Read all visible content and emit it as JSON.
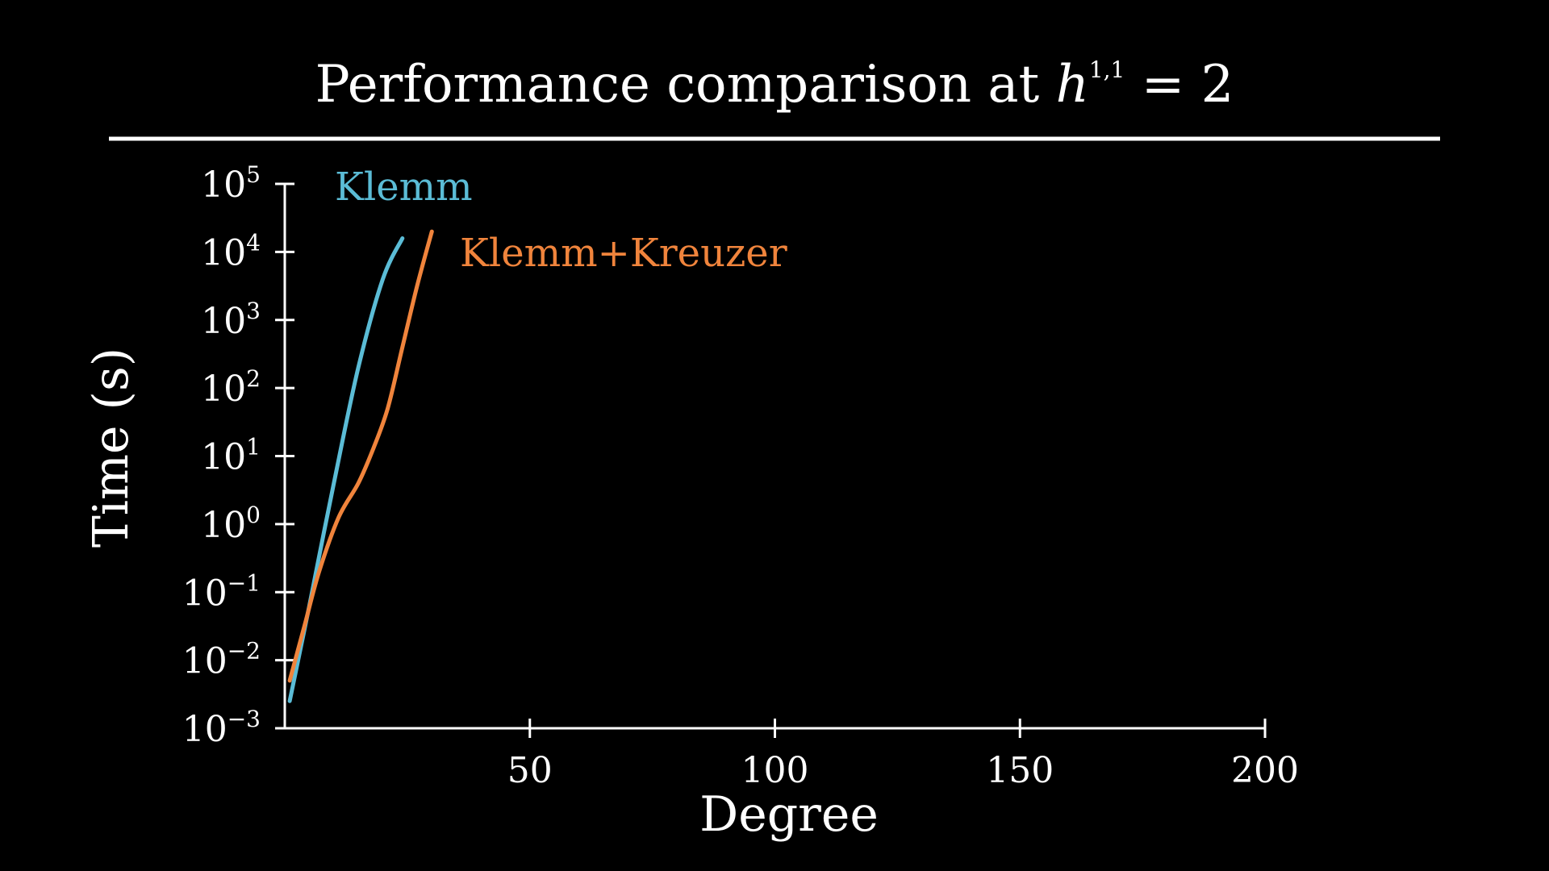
{
  "title": {
    "prefix": "Performance comparison at ",
    "var": "h",
    "sup": "1,1",
    "suffix": " = 2"
  },
  "colors": {
    "background": "#000000",
    "axis": "#ffffff",
    "klemm": "#5bbcd6",
    "klemm_kreuzer": "#f0843c"
  },
  "chart_data": {
    "type": "line",
    "title": "Performance comparison at h^{1,1} = 2",
    "xlabel": "Degree",
    "ylabel": "Time (s)",
    "xlim": [
      0,
      200
    ],
    "ylim_log10": [
      -3,
      5
    ],
    "yscale": "log",
    "grid": false,
    "legend": "inline labels near line ends",
    "x_ticks": [
      {
        "value": 50,
        "label": "50"
      },
      {
        "value": 100,
        "label": "100"
      },
      {
        "value": 150,
        "label": "150"
      },
      {
        "value": 200,
        "label": "200"
      }
    ],
    "y_ticks": [
      {
        "exp": -3,
        "base": "10",
        "sup": "−3"
      },
      {
        "exp": -2,
        "base": "10",
        "sup": "−2"
      },
      {
        "exp": -1,
        "base": "10",
        "sup": "−1"
      },
      {
        "exp": 0,
        "base": "10",
        "sup": "0"
      },
      {
        "exp": 1,
        "base": "10",
        "sup": "1"
      },
      {
        "exp": 2,
        "base": "10",
        "sup": "2"
      },
      {
        "exp": 3,
        "base": "10",
        "sup": "3"
      },
      {
        "exp": 4,
        "base": "10",
        "sup": "4"
      },
      {
        "exp": 5,
        "base": "10",
        "sup": "5"
      }
    ],
    "series": [
      {
        "name": "Klemm",
        "color": "#5bbcd6",
        "x": [
          1,
          5,
          10,
          15,
          20,
          24
        ],
        "log10_y": [
          -2.6,
          -1.2,
          0.6,
          2.3,
          3.6,
          4.2
        ]
      },
      {
        "name": "Klemm+Kreuzer",
        "color": "#f0843c",
        "x": [
          1,
          4,
          7,
          11,
          15,
          18,
          21,
          24,
          27,
          30
        ],
        "log10_y": [
          -2.3,
          -1.5,
          -0.7,
          0.1,
          0.6,
          1.1,
          1.7,
          2.6,
          3.5,
          4.3
        ]
      }
    ]
  }
}
